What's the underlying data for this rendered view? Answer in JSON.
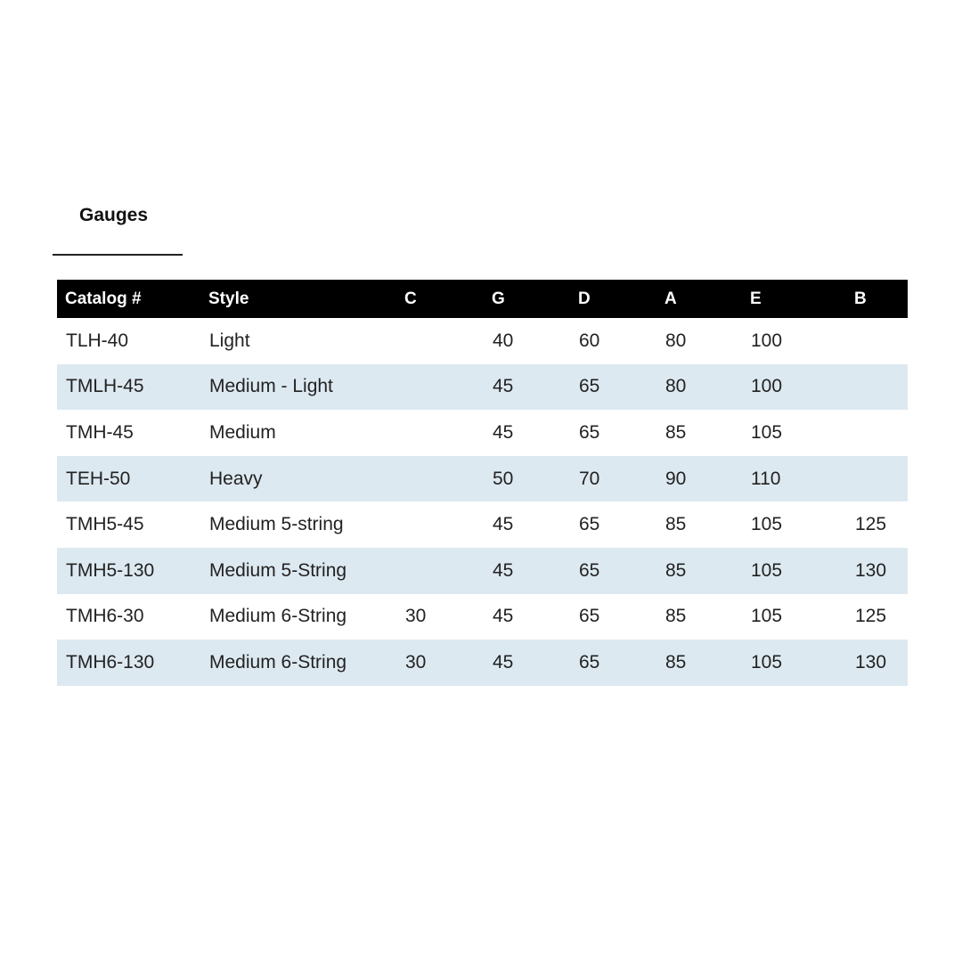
{
  "tab": {
    "label": "Gauges"
  },
  "table": {
    "headers": [
      "Catalog #",
      "Style",
      "C",
      "G",
      "D",
      "A",
      "E",
      "B"
    ],
    "rows": [
      [
        "TLH-40",
        "Light",
        "",
        "40",
        "60",
        "80",
        "100",
        ""
      ],
      [
        "TMLH-45",
        "Medium - Light",
        "",
        "45",
        "65",
        "80",
        "100",
        ""
      ],
      [
        "TMH-45",
        "Medium",
        "",
        "45",
        "65",
        "85",
        "105",
        ""
      ],
      [
        "TEH-50",
        "Heavy",
        "",
        "50",
        "70",
        "90",
        "110",
        ""
      ],
      [
        "TMH5-45",
        "Medium 5-string",
        "",
        "45",
        "65",
        "85",
        "105",
        "125"
      ],
      [
        "TMH5-130",
        "Medium 5-String",
        "",
        "45",
        "65",
        "85",
        "105",
        "130"
      ],
      [
        "TMH6-30",
        "Medium 6-String",
        "30",
        "45",
        "65",
        "85",
        "105",
        "125"
      ],
      [
        "TMH6-130",
        "Medium 6-String",
        "30",
        "45",
        "65",
        "85",
        "105",
        "130"
      ]
    ]
  },
  "colors": {
    "header_bg": "#000000",
    "stripe": "#dde9f1"
  }
}
